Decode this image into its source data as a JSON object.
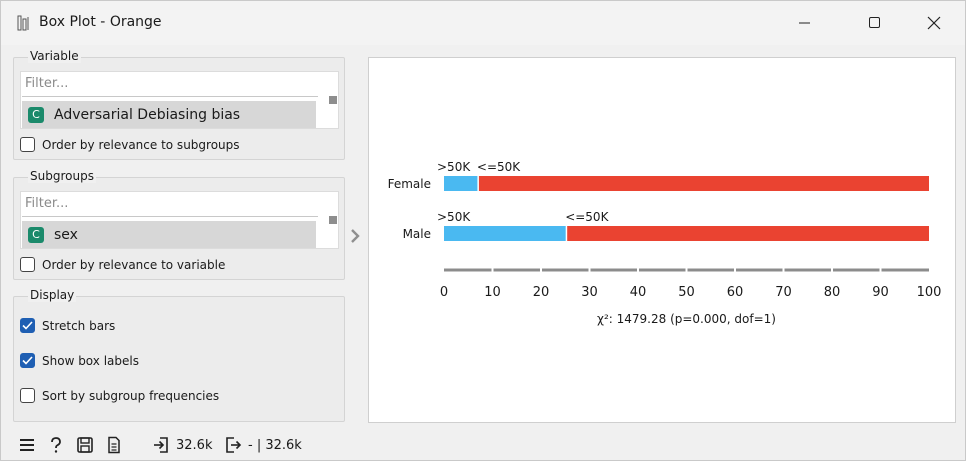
{
  "window": {
    "title": "Box Plot - Orange",
    "app_icon": "orange-boxplot-icon",
    "minimize_icon": "minimize-icon",
    "maximize_icon": "maximize-icon",
    "close_icon": "close-icon"
  },
  "variable": {
    "group_title": "Variable",
    "filter_placeholder": "Filter...",
    "items": [
      {
        "badge": "C",
        "label": "Adversarial Debiasing bias",
        "selected": true
      }
    ],
    "order_checkbox": {
      "label": "Order by relevance to subgroups",
      "checked": false
    }
  },
  "subgroups": {
    "group_title": "Subgroups",
    "filter_placeholder": "Filter...",
    "items": [
      {
        "badge": "C",
        "label": "sex",
        "selected": true
      }
    ],
    "order_checkbox": {
      "label": "Order by relevance to variable",
      "checked": false
    }
  },
  "display": {
    "group_title": "Display",
    "stretch_bars": {
      "label": "Stretch bars",
      "checked": true
    },
    "show_box_labels": {
      "label": "Show box labels",
      "checked": true
    },
    "sort_by_frequencies": {
      "label": "Sort by subgroup frequencies",
      "checked": false
    }
  },
  "colors": {
    "greater_50k": "#4ab9f1",
    "less_eq_50k": "#ea4331",
    "checkbox_checked": "#1f5fb3",
    "badge": "#1b8a6b"
  },
  "chart_data": {
    "type": "bar",
    "orientation": "horizontal",
    "stacked": true,
    "stretched_to_percent": true,
    "categories": [
      "Female",
      "Male"
    ],
    "series": [
      {
        "name": ">50K",
        "values": [
          7.2,
          25.4
        ]
      },
      {
        "name": "<=50K",
        "values": [
          92.8,
          74.6
        ]
      }
    ],
    "x_ticks": [
      "0",
      "10",
      "20",
      "30",
      "40",
      "50",
      "60",
      "70",
      "80",
      "90",
      "100"
    ],
    "xlim": [
      0,
      100
    ],
    "annotation": "χ²: 1479.28 (p=0.000, dof=1)"
  },
  "status": {
    "menu_icon": "hamburger-menu-icon",
    "help_icon": "help-icon",
    "save_icon": "save-icon",
    "report_icon": "report-icon",
    "input_icon": "input-icon",
    "input_count": "32.6k",
    "output_icon": "output-icon",
    "output_text": "- | 32.6k"
  }
}
